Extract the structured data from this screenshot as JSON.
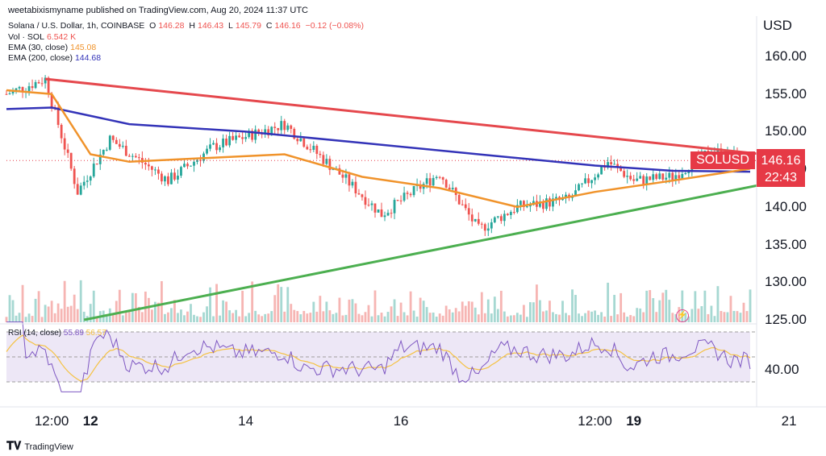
{
  "header": {
    "publisher": "weetabixismyname published on TradingView.com, Aug 20, 2024 11:37 UTC",
    "symbol_line": "Solana / U.S. Dollar, 1h, COINBASE",
    "o_label": "O",
    "o_value": "146.28",
    "h_label": "H",
    "h_value": "146.43",
    "l_label": "L",
    "l_value": "145.79",
    "c_label": "C",
    "c_value": "146.16",
    "change": "−0.12 (−0.08%)",
    "vol_label": "Vol · SOL",
    "vol_value": "6.542 K",
    "ema30_label": "EMA (30, close)",
    "ema30_value": "145.08",
    "ema200_label": "EMA (200, close)",
    "ema200_value": "144.68",
    "rsi_label": "RSI (14, close)",
    "rsi_value": "55.89",
    "rsi_ma_value": "56.57"
  },
  "price_axis": {
    "currency": "USD",
    "ticks": [
      "160.00",
      "155.00",
      "150.00",
      "145.00",
      "140.00",
      "135.00",
      "130.00",
      "125.00"
    ]
  },
  "rsi_axis": {
    "ticks": [
      "40.00"
    ]
  },
  "time_axis": {
    "ticks": [
      {
        "label": "12:00",
        "bold": false
      },
      {
        "label": "12",
        "bold": true
      },
      {
        "label": "14",
        "bold": false
      },
      {
        "label": "16",
        "bold": false
      },
      {
        "label": "12:00",
        "bold": false
      },
      {
        "label": "19",
        "bold": true
      },
      {
        "label": "21",
        "bold": false
      }
    ]
  },
  "last_price": {
    "symbol": "SOLUSD",
    "price": "146.16",
    "countdown": "22:43"
  },
  "footer": {
    "brand": "TradingView"
  },
  "colors": {
    "up": "#26a69a",
    "down": "#ef5350",
    "ema30": "#f0932b",
    "ema200": "#3333b8",
    "resistance": "#e5484d",
    "support": "#4caf50",
    "rsi": "#7e57c2",
    "rsi_ma": "#f5c242",
    "price_label": "#e63946"
  },
  "chart_data": {
    "type": "candlestick",
    "title": "Solana / U.S. Dollar, 1h, COINBASE",
    "ylabel": "USD",
    "ylim": [
      125,
      162
    ],
    "x_start": "2024-08-10T22:00Z",
    "x_end": "2024-08-20T12:00Z",
    "key_points": [
      {
        "t": "2024-08-10T22:00Z",
        "price": 155.0
      },
      {
        "t": "2024-08-11T10:00Z",
        "price": 157.0
      },
      {
        "t": "2024-08-11T20:00Z",
        "price": 142.0
      },
      {
        "t": "2024-08-12T06:00Z",
        "price": 149.0
      },
      {
        "t": "2024-08-13T00:00Z",
        "price": 143.5
      },
      {
        "t": "2024-08-13T14:00Z",
        "price": 148.0
      },
      {
        "t": "2024-08-14T12:00Z",
        "price": 151.0
      },
      {
        "t": "2024-08-15T06:00Z",
        "price": 144.0
      },
      {
        "t": "2024-08-15T18:00Z",
        "price": 139.0
      },
      {
        "t": "2024-08-16T12:00Z",
        "price": 144.5
      },
      {
        "t": "2024-08-17T00:00Z",
        "price": 137.0
      },
      {
        "t": "2024-08-17T12:00Z",
        "price": 140.0
      },
      {
        "t": "2024-08-18T04:00Z",
        "price": 141.0
      },
      {
        "t": "2024-08-18T16:00Z",
        "price": 146.0
      },
      {
        "t": "2024-08-19T00:00Z",
        "price": 143.5
      },
      {
        "t": "2024-08-19T12:00Z",
        "price": 144.0
      },
      {
        "t": "2024-08-20T00:00Z",
        "price": 147.5
      },
      {
        "t": "2024-08-20T12:00Z",
        "price": 146.16
      }
    ],
    "ema30": [
      {
        "t": "2024-08-10T22:00Z",
        "v": 155.5
      },
      {
        "t": "2024-08-11T12:00Z",
        "v": 155.0
      },
      {
        "t": "2024-08-12T00:00Z",
        "v": 147.0
      },
      {
        "t": "2024-08-12T12:00Z",
        "v": 146.0
      },
      {
        "t": "2024-08-13T12:00Z",
        "v": 146.5
      },
      {
        "t": "2024-08-14T12:00Z",
        "v": 147.0
      },
      {
        "t": "2024-08-15T12:00Z",
        "v": 144.0
      },
      {
        "t": "2024-08-16T12:00Z",
        "v": 142.5
      },
      {
        "t": "2024-08-17T12:00Z",
        "v": 140.0
      },
      {
        "t": "2024-08-18T12:00Z",
        "v": 142.0
      },
      {
        "t": "2024-08-19T12:00Z",
        "v": 143.5
      },
      {
        "t": "2024-08-20T12:00Z",
        "v": 145.08
      }
    ],
    "ema200": [
      {
        "t": "2024-08-10T22:00Z",
        "v": 153.0
      },
      {
        "t": "2024-08-11T12:00Z",
        "v": 153.2
      },
      {
        "t": "2024-08-12T12:00Z",
        "v": 151.0
      },
      {
        "t": "2024-08-14T00:00Z",
        "v": 150.0
      },
      {
        "t": "2024-08-15T12:00Z",
        "v": 148.5
      },
      {
        "t": "2024-08-17T00:00Z",
        "v": 147.0
      },
      {
        "t": "2024-08-18T12:00Z",
        "v": 145.5
      },
      {
        "t": "2024-08-19T12:00Z",
        "v": 144.8
      },
      {
        "t": "2024-08-20T12:00Z",
        "v": 144.68
      }
    ],
    "resistance_line": [
      {
        "t": "2024-08-11T10:00Z",
        "v": 157.0
      },
      {
        "t": "2024-08-20T16:00Z",
        "v": 147.0
      }
    ],
    "support_line": [
      {
        "t": "2024-08-11T22:00Z",
        "v": 125.0
      },
      {
        "t": "2024-08-20T16:00Z",
        "v": 143.0
      }
    ],
    "last_close": 146.16,
    "rsi": {
      "last": 55.89,
      "ma_last": 56.57
    }
  }
}
